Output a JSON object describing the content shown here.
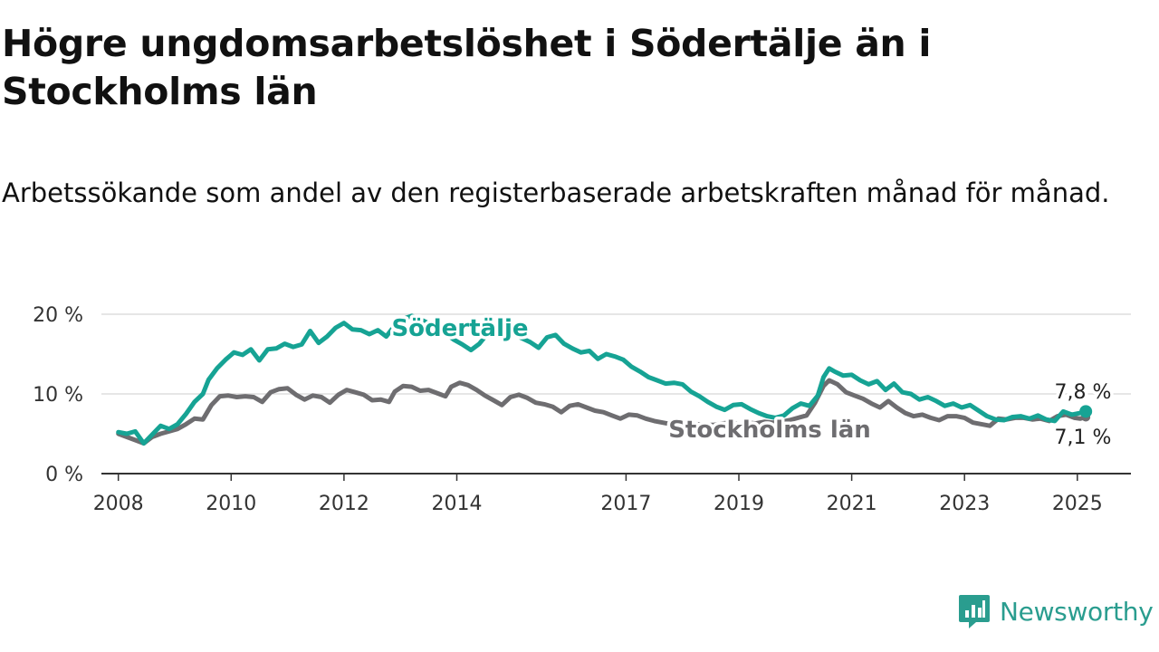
{
  "title": "Högre ungdomsarbetslöshet i Södertälje än i Stockholms län",
  "subtitle": "Arbetssökande som andel av den registerbaserade arbetskraften månad för månad.",
  "brand": {
    "name": "Newsworthy",
    "icon": "newsworthy-logo-icon",
    "color": "#2a9d8f"
  },
  "colors": {
    "teal": "#16a394",
    "gray": "#6e6d70",
    "grid": "#dddddd",
    "axis": "#333333"
  },
  "chart_data": {
    "type": "line",
    "x_ticks": [
      2008,
      2010,
      2012,
      2014,
      2017,
      2019,
      2021,
      2023,
      2025
    ],
    "y_ticks": [
      0,
      10,
      20
    ],
    "y_tick_labels": [
      "0 %",
      "10 %",
      "20 %"
    ],
    "ylim": [
      0,
      20
    ],
    "xlim": [
      2007.7,
      2025.95
    ],
    "grid": true,
    "series": [
      {
        "name": "Södertälje",
        "color": "#16a394",
        "end_label": "7,8 %",
        "points": [
          [
            2008.0,
            5.2
          ],
          [
            2008.15,
            5.0
          ],
          [
            2008.3,
            5.3
          ],
          [
            2008.45,
            3.8
          ],
          [
            2008.6,
            4.9
          ],
          [
            2008.75,
            6.0
          ],
          [
            2008.9,
            5.6
          ],
          [
            2009.05,
            6.2
          ],
          [
            2009.2,
            7.5
          ],
          [
            2009.35,
            9.0
          ],
          [
            2009.5,
            10.0
          ],
          [
            2009.6,
            11.8
          ],
          [
            2009.75,
            13.2
          ],
          [
            2009.9,
            14.3
          ],
          [
            2010.05,
            15.2
          ],
          [
            2010.2,
            14.9
          ],
          [
            2010.35,
            15.6
          ],
          [
            2010.5,
            14.2
          ],
          [
            2010.65,
            15.6
          ],
          [
            2010.8,
            15.7
          ],
          [
            2010.95,
            16.3
          ],
          [
            2011.1,
            15.9
          ],
          [
            2011.25,
            16.2
          ],
          [
            2011.4,
            17.9
          ],
          [
            2011.55,
            16.4
          ],
          [
            2011.7,
            17.2
          ],
          [
            2011.85,
            18.3
          ],
          [
            2012.0,
            18.9
          ],
          [
            2012.15,
            18.1
          ],
          [
            2012.3,
            18.0
          ],
          [
            2012.45,
            17.5
          ],
          [
            2012.6,
            18.0
          ],
          [
            2012.75,
            17.2
          ],
          [
            2012.9,
            18.6
          ],
          [
            2013.0,
            19.3
          ],
          [
            2013.2,
            19.8
          ],
          [
            2013.4,
            19.2
          ],
          [
            2013.6,
            18.5
          ],
          [
            2013.8,
            17.6
          ],
          [
            2013.95,
            16.8
          ],
          [
            2014.1,
            16.2
          ],
          [
            2014.25,
            15.5
          ],
          [
            2014.4,
            16.3
          ],
          [
            2014.55,
            17.6
          ],
          [
            2014.7,
            18.0
          ],
          [
            2014.85,
            18.3
          ],
          [
            2015.0,
            17.6
          ],
          [
            2015.15,
            17.0
          ],
          [
            2015.3,
            16.5
          ],
          [
            2015.45,
            15.8
          ],
          [
            2015.6,
            17.1
          ],
          [
            2015.75,
            17.4
          ],
          [
            2015.9,
            16.3
          ],
          [
            2016.05,
            15.7
          ],
          [
            2016.2,
            15.2
          ],
          [
            2016.35,
            15.4
          ],
          [
            2016.5,
            14.4
          ],
          [
            2016.65,
            15.0
          ],
          [
            2016.8,
            14.7
          ],
          [
            2016.95,
            14.3
          ],
          [
            2017.1,
            13.4
          ],
          [
            2017.25,
            12.8
          ],
          [
            2017.4,
            12.1
          ],
          [
            2017.55,
            11.7
          ],
          [
            2017.7,
            11.3
          ],
          [
            2017.85,
            11.4
          ],
          [
            2018.0,
            11.2
          ],
          [
            2018.15,
            10.3
          ],
          [
            2018.3,
            9.7
          ],
          [
            2018.45,
            9.0
          ],
          [
            2018.6,
            8.4
          ],
          [
            2018.75,
            8.0
          ],
          [
            2018.9,
            8.6
          ],
          [
            2019.05,
            8.7
          ],
          [
            2019.2,
            8.1
          ],
          [
            2019.35,
            7.6
          ],
          [
            2019.5,
            7.2
          ],
          [
            2019.65,
            7.0
          ],
          [
            2019.8,
            7.3
          ],
          [
            2019.95,
            8.2
          ],
          [
            2020.1,
            8.8
          ],
          [
            2020.25,
            8.5
          ],
          [
            2020.4,
            9.8
          ],
          [
            2020.5,
            12.1
          ],
          [
            2020.6,
            13.2
          ],
          [
            2020.7,
            12.8
          ],
          [
            2020.85,
            12.3
          ],
          [
            2021.0,
            12.4
          ],
          [
            2021.15,
            11.7
          ],
          [
            2021.3,
            11.2
          ],
          [
            2021.45,
            11.6
          ],
          [
            2021.6,
            10.5
          ],
          [
            2021.75,
            11.3
          ],
          [
            2021.9,
            10.2
          ],
          [
            2022.05,
            10.0
          ],
          [
            2022.2,
            9.3
          ],
          [
            2022.35,
            9.6
          ],
          [
            2022.5,
            9.1
          ],
          [
            2022.65,
            8.5
          ],
          [
            2022.8,
            8.8
          ],
          [
            2022.95,
            8.3
          ],
          [
            2023.1,
            8.6
          ],
          [
            2023.25,
            7.9
          ],
          [
            2023.4,
            7.2
          ],
          [
            2023.55,
            6.8
          ],
          [
            2023.7,
            6.7
          ],
          [
            2023.85,
            7.1
          ],
          [
            2024.0,
            7.2
          ],
          [
            2024.15,
            6.9
          ],
          [
            2024.3,
            7.3
          ],
          [
            2024.45,
            6.8
          ],
          [
            2024.6,
            6.6
          ],
          [
            2024.75,
            7.8
          ],
          [
            2024.9,
            7.4
          ],
          [
            2025.05,
            7.6
          ],
          [
            2025.15,
            7.8
          ]
        ]
      },
      {
        "name": "Stockholms län",
        "color": "#6e6d70",
        "end_label": "7,1 %",
        "points": [
          [
            2008.0,
            5.0
          ],
          [
            2008.15,
            4.6
          ],
          [
            2008.3,
            4.2
          ],
          [
            2008.45,
            3.8
          ],
          [
            2008.6,
            4.6
          ],
          [
            2008.75,
            5.0
          ],
          [
            2008.9,
            5.3
          ],
          [
            2009.05,
            5.6
          ],
          [
            2009.2,
            6.2
          ],
          [
            2009.35,
            6.9
          ],
          [
            2009.5,
            6.8
          ],
          [
            2009.65,
            8.6
          ],
          [
            2009.8,
            9.7
          ],
          [
            2009.95,
            9.8
          ],
          [
            2010.1,
            9.6
          ],
          [
            2010.25,
            9.7
          ],
          [
            2010.4,
            9.6
          ],
          [
            2010.55,
            9.0
          ],
          [
            2010.7,
            10.2
          ],
          [
            2010.85,
            10.6
          ],
          [
            2011.0,
            10.7
          ],
          [
            2011.15,
            9.9
          ],
          [
            2011.3,
            9.3
          ],
          [
            2011.45,
            9.8
          ],
          [
            2011.6,
            9.6
          ],
          [
            2011.75,
            8.9
          ],
          [
            2011.9,
            9.9
          ],
          [
            2012.05,
            10.5
          ],
          [
            2012.2,
            10.2
          ],
          [
            2012.35,
            9.9
          ],
          [
            2012.5,
            9.2
          ],
          [
            2012.65,
            9.3
          ],
          [
            2012.8,
            9.0
          ],
          [
            2012.9,
            10.3
          ],
          [
            2013.05,
            11.0
          ],
          [
            2013.2,
            10.9
          ],
          [
            2013.35,
            10.4
          ],
          [
            2013.5,
            10.5
          ],
          [
            2013.65,
            10.1
          ],
          [
            2013.8,
            9.7
          ],
          [
            2013.9,
            10.9
          ],
          [
            2014.05,
            11.4
          ],
          [
            2014.2,
            11.1
          ],
          [
            2014.35,
            10.5
          ],
          [
            2014.5,
            9.8
          ],
          [
            2014.65,
            9.2
          ],
          [
            2014.8,
            8.6
          ],
          [
            2014.95,
            9.6
          ],
          [
            2015.1,
            9.9
          ],
          [
            2015.25,
            9.5
          ],
          [
            2015.4,
            8.9
          ],
          [
            2015.55,
            8.7
          ],
          [
            2015.7,
            8.4
          ],
          [
            2015.85,
            7.7
          ],
          [
            2016.0,
            8.5
          ],
          [
            2016.15,
            8.7
          ],
          [
            2016.3,
            8.3
          ],
          [
            2016.45,
            7.9
          ],
          [
            2016.6,
            7.7
          ],
          [
            2016.75,
            7.3
          ],
          [
            2016.9,
            6.9
          ],
          [
            2017.05,
            7.4
          ],
          [
            2017.2,
            7.3
          ],
          [
            2017.35,
            6.9
          ],
          [
            2017.5,
            6.6
          ],
          [
            2017.65,
            6.4
          ],
          [
            2017.8,
            6.2
          ],
          [
            2017.95,
            6.6
          ],
          [
            2018.1,
            6.4
          ],
          [
            2018.25,
            6.2
          ],
          [
            2018.4,
            6.1
          ],
          [
            2018.55,
            6.1
          ],
          [
            2018.7,
            6.3
          ],
          [
            2018.85,
            6.4
          ],
          [
            2019.0,
            6.2
          ],
          [
            2019.15,
            6.4
          ],
          [
            2019.3,
            6.3
          ],
          [
            2019.45,
            6.5
          ],
          [
            2019.6,
            6.4
          ],
          [
            2019.75,
            6.5
          ],
          [
            2019.9,
            6.7
          ],
          [
            2020.05,
            7.0
          ],
          [
            2020.2,
            7.3
          ],
          [
            2020.35,
            8.9
          ],
          [
            2020.5,
            11.0
          ],
          [
            2020.6,
            11.7
          ],
          [
            2020.75,
            11.2
          ],
          [
            2020.9,
            10.2
          ],
          [
            2021.05,
            9.8
          ],
          [
            2021.2,
            9.4
          ],
          [
            2021.35,
            8.8
          ],
          [
            2021.5,
            8.3
          ],
          [
            2021.65,
            9.1
          ],
          [
            2021.8,
            8.3
          ],
          [
            2021.95,
            7.6
          ],
          [
            2022.1,
            7.2
          ],
          [
            2022.25,
            7.4
          ],
          [
            2022.4,
            7.0
          ],
          [
            2022.55,
            6.7
          ],
          [
            2022.7,
            7.2
          ],
          [
            2022.85,
            7.2
          ],
          [
            2023.0,
            7.0
          ],
          [
            2023.15,
            6.4
          ],
          [
            2023.3,
            6.2
          ],
          [
            2023.45,
            6.0
          ],
          [
            2023.6,
            6.9
          ],
          [
            2023.75,
            6.8
          ],
          [
            2023.9,
            7.0
          ],
          [
            2024.05,
            7.0
          ],
          [
            2024.2,
            6.8
          ],
          [
            2024.35,
            6.9
          ],
          [
            2024.5,
            6.6
          ],
          [
            2024.65,
            7.2
          ],
          [
            2024.8,
            7.4
          ],
          [
            2024.95,
            7.0
          ],
          [
            2025.05,
            6.9
          ],
          [
            2025.15,
            7.1
          ]
        ]
      }
    ]
  }
}
